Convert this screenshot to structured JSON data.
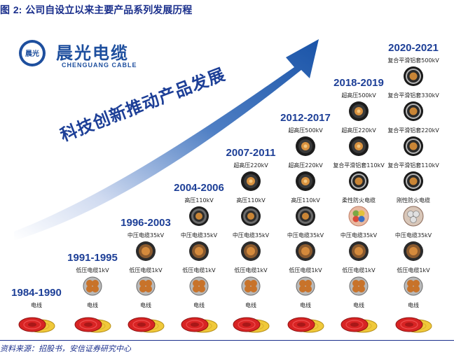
{
  "figure": {
    "label": "图",
    "number": "2:",
    "title": "公司自设立以来主要产品系列发展历程"
  },
  "logo": {
    "chinese": "晨光电缆",
    "english": "CHENGUANG CABLE",
    "badge_text": "晨光",
    "color": "#1e4f9e"
  },
  "slogan": "科技创新推动产品发展",
  "colors": {
    "arrow": "#1a54a8",
    "period_text": "#1d3f97",
    "title": "#1a2f8c"
  },
  "columns": [
    {
      "period": "1984-1990",
      "products": [
        {
          "label": "电线",
          "icon": "wire-icon"
        }
      ]
    },
    {
      "period": "1991-1995",
      "products": [
        {
          "label": "低压电缆1kV",
          "icon": "lv-cable-icon"
        },
        {
          "label": "电线",
          "icon": "wire-icon"
        }
      ]
    },
    {
      "period": "1996-2003",
      "products": [
        {
          "label": "中压电缆35kV",
          "icon": "mv-cable-icon"
        },
        {
          "label": "低压电缆1kV",
          "icon": "lv-cable-icon"
        },
        {
          "label": "电线",
          "icon": "wire-icon"
        }
      ]
    },
    {
      "period": "2004-2006",
      "products": [
        {
          "label": "高压110kV",
          "icon": "hv-cable-icon"
        },
        {
          "label": "中压电缆35kV",
          "icon": "mv-cable-icon"
        },
        {
          "label": "低压电缆1kV",
          "icon": "lv-cable-icon"
        },
        {
          "label": "电线",
          "icon": "wire-icon"
        }
      ]
    },
    {
      "period": "2007-2011",
      "products": [
        {
          "label": "超高压220kV",
          "icon": "ehv-cable-icon"
        },
        {
          "label": "高压110kV",
          "icon": "hv-cable-icon"
        },
        {
          "label": "中压电缆35kV",
          "icon": "mv-cable-icon"
        },
        {
          "label": "低压电缆1kV",
          "icon": "lv-cable-icon"
        },
        {
          "label": "电线",
          "icon": "wire-icon"
        }
      ]
    },
    {
      "period": "2012-2017",
      "products": [
        {
          "label": "超高压500kV",
          "icon": "ehv-cable-icon"
        },
        {
          "label": "超高压220kV",
          "icon": "ehv-cable-icon"
        },
        {
          "label": "高压110kV",
          "icon": "hv-cable-icon"
        },
        {
          "label": "中压电缆35kV",
          "icon": "mv-cable-icon"
        },
        {
          "label": "低压电缆1kV",
          "icon": "lv-cable-icon"
        },
        {
          "label": "电线",
          "icon": "wire-icon"
        }
      ]
    },
    {
      "period": "2018-2019",
      "products": [
        {
          "label": "超高压500kV",
          "icon": "ehv-cable-icon"
        },
        {
          "label": "超高压220kV",
          "icon": "ehv-cable-icon"
        },
        {
          "label": "复合平滑铝套110kV",
          "icon": "aluminum-sheath-cable-icon"
        },
        {
          "label": "柔性防火电缆",
          "icon": "flexible-fireproof-cable-icon"
        },
        {
          "label": "中压电缆35kV",
          "icon": "mv-cable-icon"
        },
        {
          "label": "低压电缆1kV",
          "icon": "lv-cable-icon"
        },
        {
          "label": "电线",
          "icon": "wire-icon"
        }
      ]
    },
    {
      "period": "2020-2021",
      "products": [
        {
          "label": "复合平滑铝套500kV",
          "icon": "aluminum-sheath-cable-icon"
        },
        {
          "label": "复合平滑铝套330kV",
          "icon": "aluminum-sheath-cable-icon"
        },
        {
          "label": "复合平滑铝套220kV",
          "icon": "aluminum-sheath-cable-icon"
        },
        {
          "label": "复合平滑铝套110kV",
          "icon": "aluminum-sheath-cable-icon"
        },
        {
          "label": "刚性防火电缆",
          "icon": "rigid-fireproof-cable-icon"
        },
        {
          "label": "中压电缆35kV",
          "icon": "mv-cable-icon"
        },
        {
          "label": "低压电缆1kV",
          "icon": "lv-cable-icon"
        },
        {
          "label": "电线",
          "icon": "wire-icon"
        }
      ]
    }
  ],
  "source": "资料来源：招股书，安信证券研究中心"
}
